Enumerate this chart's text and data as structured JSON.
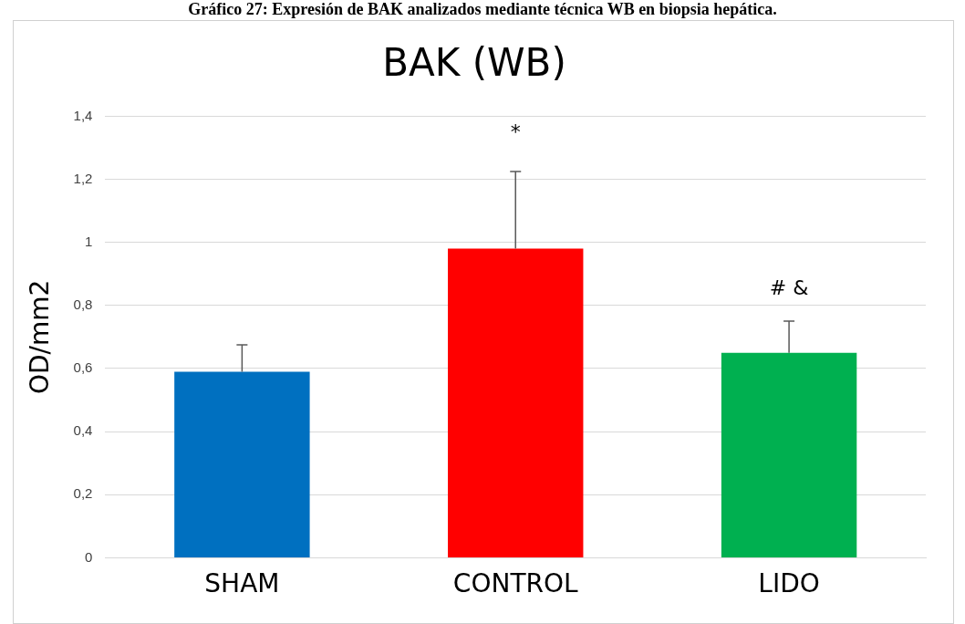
{
  "chart_data": {
    "type": "bar",
    "title": "BAK (WB)",
    "ylabel": "OD/mm2",
    "categories": [
      "SHAM",
      "CONTROL",
      "LIDO"
    ],
    "values": [
      0.59,
      0.98,
      0.65
    ],
    "colors": [
      "#0070c0",
      "#ff0000",
      "#00b050"
    ],
    "errors": [
      [
        0.59,
        0.675
      ],
      [
        0.98,
        1.225
      ],
      [
        0.65,
        0.75
      ]
    ],
    "ylim": [
      0,
      1.4
    ],
    "yticks": [
      {
        "value": 0,
        "label": "0"
      },
      {
        "value": 0.2,
        "label": "0,2"
      },
      {
        "value": 0.4,
        "label": "0,4"
      },
      {
        "value": 0.6,
        "label": "0,6"
      },
      {
        "value": 0.8,
        "label": "0,8"
      },
      {
        "value": 1,
        "label": "1"
      },
      {
        "value": 1.2,
        "label": "1,2"
      },
      {
        "value": 1.4,
        "label": "1,4"
      }
    ],
    "grid": "y",
    "legend": false,
    "annotations": [
      "Gráfico 27: Expresión de BAK analizados mediante técnica WB en biopsia hepática.",
      "*",
      "# &"
    ]
  }
}
